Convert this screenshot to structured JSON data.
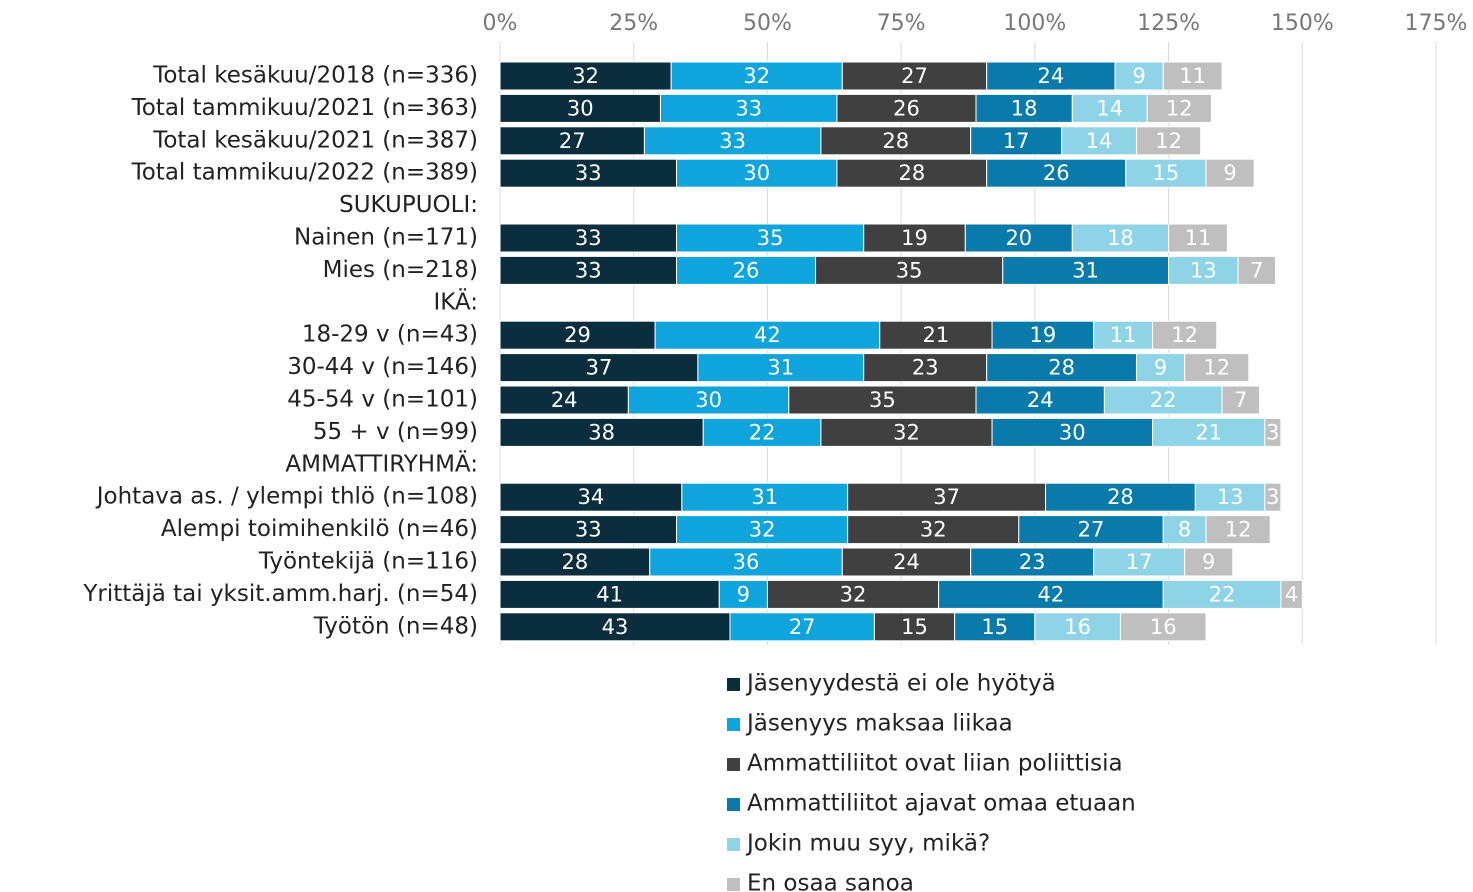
{
  "chart_data": {
    "type": "stacked-bar-horizontal",
    "categories": [
      "Total kesäkuu/2018 (n=336)",
      "Total tammikuu/2021 (n=363)",
      "Total kesäkuu/2021 (n=387)",
      "Total tammikuu/2022 (n=389)",
      "SUKUPUOLI:",
      "Nainen (n=171)",
      "Mies (n=218)",
      "IKÄ:",
      "18-29 v (n=43)",
      "30-44 v (n=146)",
      "45-54 v (n=101)",
      "55 + v (n=99)",
      "AMMATTIRYHMÄ:",
      "Johtava as. / ylempi thlö (n=108)",
      "Alempi toimihenkilö (n=46)",
      "Työntekijä (n=116)",
      "Yrittäjä tai yksit.amm.harj. (n=54)",
      "Työtön (n=48)"
    ],
    "series": [
      {
        "name": "Jäsenyydestä ei ole hyötyä",
        "color": "#0b2e3e",
        "values": [
          32,
          30,
          27,
          33,
          null,
          33,
          33,
          null,
          29,
          37,
          24,
          38,
          null,
          34,
          33,
          28,
          41,
          43
        ]
      },
      {
        "name": "Jäsenyys maksaa liikaa",
        "color": "#10a4dc",
        "values": [
          32,
          33,
          33,
          30,
          null,
          35,
          26,
          null,
          42,
          31,
          30,
          22,
          null,
          31,
          32,
          36,
          9,
          27
        ]
      },
      {
        "name": "Ammattiliitot ovat liian poliittisia",
        "color": "#404040",
        "values": [
          27,
          26,
          28,
          28,
          null,
          19,
          35,
          null,
          21,
          23,
          35,
          32,
          null,
          37,
          32,
          24,
          32,
          15
        ]
      },
      {
        "name": "Ammattiliitot ajavat omaa etuaan",
        "color": "#0a7aab",
        "values": [
          24,
          18,
          17,
          26,
          null,
          20,
          31,
          null,
          19,
          28,
          24,
          30,
          null,
          28,
          27,
          23,
          42,
          15
        ]
      },
      {
        "name": "Jokin muu syy, mikä?",
        "color": "#8fd3e7",
        "values": [
          9,
          14,
          14,
          15,
          null,
          18,
          13,
          null,
          11,
          9,
          22,
          21,
          null,
          13,
          8,
          17,
          22,
          16
        ]
      },
      {
        "name": "En osaa sanoa",
        "color": "#bfbfbf",
        "values": [
          11,
          12,
          12,
          9,
          null,
          11,
          7,
          null,
          12,
          12,
          7,
          3,
          null,
          3,
          12,
          9,
          4,
          16
        ]
      }
    ],
    "xlim": [
      0,
      175
    ],
    "xticks": [
      {
        "value": 0,
        "label": "0%"
      },
      {
        "value": 25,
        "label": "25%"
      },
      {
        "value": 50,
        "label": "50%"
      },
      {
        "value": 75,
        "label": "75%"
      },
      {
        "value": 100,
        "label": "100%"
      },
      {
        "value": 125,
        "label": "125%"
      },
      {
        "value": 150,
        "label": "150%"
      },
      {
        "value": 175,
        "label": "175%"
      }
    ],
    "grid": true
  }
}
